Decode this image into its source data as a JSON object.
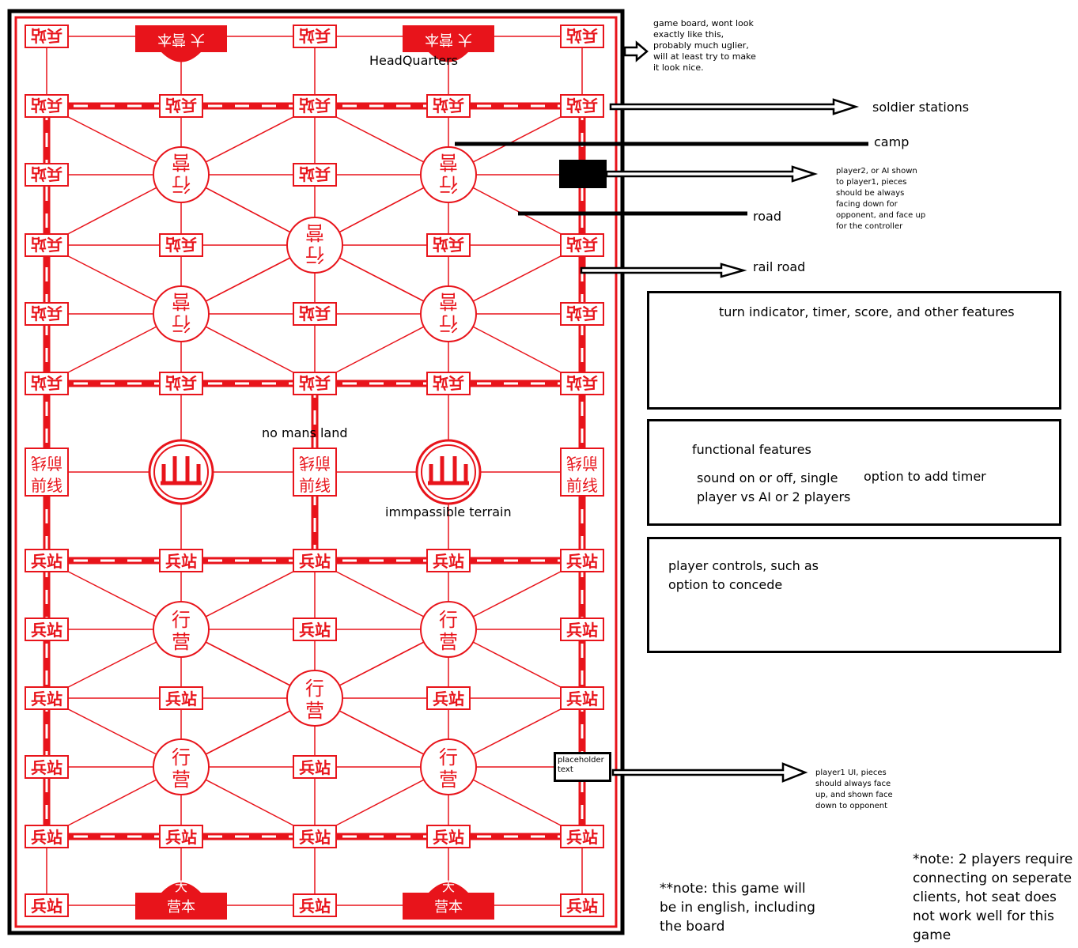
{
  "board": {
    "station_label": "兵站",
    "camp_label_top": "行",
    "camp_label_bottom": "营",
    "hq_top": "大",
    "hq_bottom": "营本",
    "frontline_top": "前线",
    "frontline_bottom": "前线",
    "board_labels": {
      "headquarters": "HeadQuarters",
      "no_mans_land": "no mans land",
      "impassable": "immpassible terrain"
    },
    "placeholder": "placeholder text"
  },
  "annotations": {
    "game_board": "game board, wont look exactly like this, probably much uglier, will at least try to make it look nice.",
    "soldier_stations": "soldier stations",
    "camp": "camp",
    "player2": "player2, or AI shown to player1, pieces should be always facing down for opponent, and face up for the controller",
    "road": "road",
    "rail_road": "rail road",
    "player1": "player1 UI, pieces should always face up, and shown face down to opponent",
    "note_english": "**note: this game will be in english, including the board",
    "note_players": "*note: 2 players require connecting on seperate clients, hot seat does not work well for this game"
  },
  "panels": {
    "turn": "turn indicator, timer, score, and other features",
    "functional_title": "functional features",
    "functional_left": "sound on or off, single player vs AI or 2 players",
    "functional_right": "option to add timer",
    "controls": "player controls, such as option to concede"
  },
  "colors": {
    "red": "#e8141b",
    "black": "#000000"
  }
}
